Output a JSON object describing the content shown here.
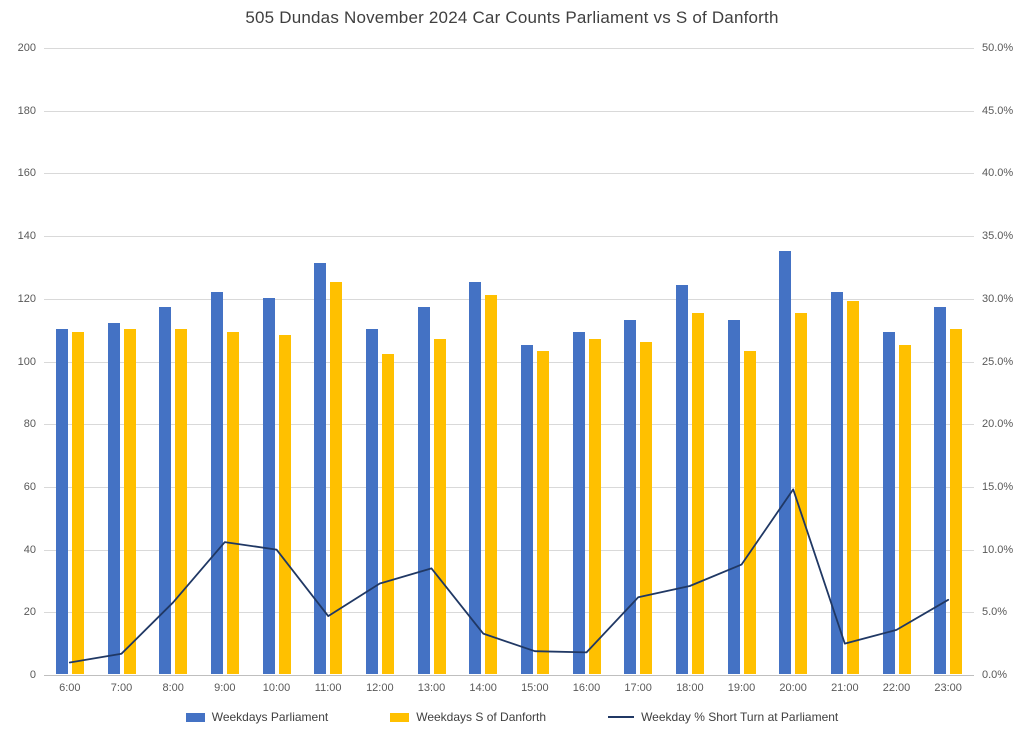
{
  "chart_data": {
    "type": "combo",
    "title": "505 Dundas November 2024 Car Counts Parliament vs S of Danforth",
    "categories": [
      "6:00",
      "7:00",
      "8:00",
      "9:00",
      "10:00",
      "11:00",
      "12:00",
      "13:00",
      "14:00",
      "15:00",
      "16:00",
      "17:00",
      "18:00",
      "19:00",
      "20:00",
      "21:00",
      "22:00",
      "23:00"
    ],
    "series": [
      {
        "name": "Weekdays Parliament",
        "type": "bar",
        "axis": "left",
        "color": "#4472C4",
        "values": [
          110,
          112,
          117,
          122,
          120,
          131,
          110,
          117,
          125,
          105,
          109,
          113,
          124,
          113,
          135,
          122,
          109,
          117
        ]
      },
      {
        "name": "Weekdays S of Danforth",
        "type": "bar",
        "axis": "left",
        "color": "#FFC000",
        "values": [
          109,
          110,
          110,
          109,
          108,
          125,
          102,
          107,
          121,
          103,
          107,
          106,
          115,
          103,
          115,
          119,
          105,
          110
        ]
      },
      {
        "name": "Weekday % Short Turn at Parliament",
        "type": "line",
        "axis": "right",
        "color": "#203864",
        "values": [
          1.0,
          1.7,
          5.8,
          10.6,
          10.0,
          4.7,
          7.3,
          8.5,
          3.3,
          1.9,
          1.8,
          6.2,
          7.1,
          8.8,
          14.8,
          2.5,
          3.6,
          6.0
        ]
      }
    ],
    "left_axis": {
      "min": 0,
      "max": 200,
      "step": 20,
      "labels": [
        "200",
        "180",
        "160",
        "140",
        "120",
        "100",
        "80",
        "60",
        "40",
        "20",
        "0"
      ]
    },
    "right_axis": {
      "min": 0,
      "max": 50,
      "step": 5,
      "labels": [
        "50.0%",
        "45.0%",
        "40.0%",
        "35.0%",
        "30.0%",
        "25.0%",
        "20.0%",
        "15.0%",
        "10.0%",
        "5.0%",
        "0.0%"
      ]
    },
    "grid": "horizontal",
    "legend_position": "bottom",
    "colors": {
      "gridline": "#d9d9d9",
      "axis_line": "#bfbfbf",
      "tick_label": "#595959",
      "title": "#3f3f3f",
      "background": "#ffffff"
    }
  }
}
